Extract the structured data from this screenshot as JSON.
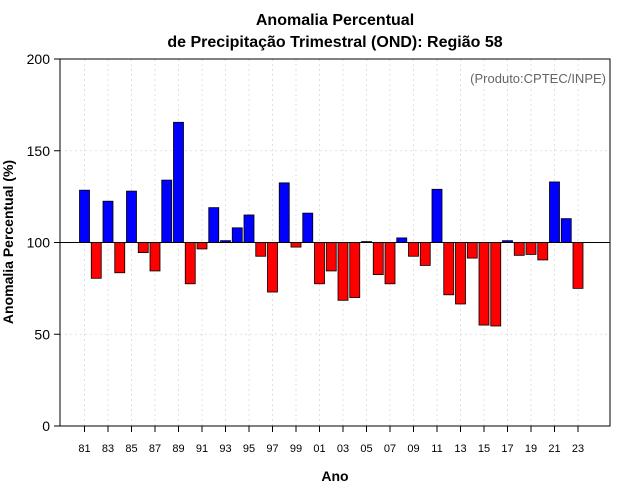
{
  "chart_data": {
    "type": "bar",
    "title_line1": "Anomalia Percentual",
    "title_line2": "de Precipitação Trimestral (OND): Região 58",
    "xlabel": "Ano",
    "ylabel": "Anomalia Percentual (%)",
    "credit": "(Produto:CPTEC/INPE)",
    "baseline": 100,
    "ylim": [
      0,
      200
    ],
    "yticks": [
      0,
      50,
      100,
      150,
      200
    ],
    "grid": true,
    "colors": {
      "above": "#0000ff",
      "below": "#ff0000"
    },
    "categories": [
      "81",
      "82",
      "83",
      "84",
      "85",
      "86",
      "87",
      "88",
      "89",
      "90",
      "91",
      "92",
      "93",
      "94",
      "95",
      "96",
      "97",
      "98",
      "99",
      "00",
      "01",
      "02",
      "03",
      "04",
      "05",
      "06",
      "07",
      "08",
      "09",
      "10",
      "11",
      "12",
      "13",
      "14",
      "15",
      "16",
      "17",
      "18",
      "19",
      "20",
      "21",
      "22",
      "23"
    ],
    "values": [
      128.5,
      80.5,
      122.5,
      83.5,
      128,
      94.5,
      84.5,
      134,
      165.5,
      77.5,
      96.5,
      119,
      101,
      108,
      115,
      92.5,
      73,
      132.5,
      97.5,
      116,
      77.5,
      84.5,
      68.5,
      70,
      100.5,
      82.5,
      77.5,
      102.5,
      92.5,
      87.5,
      129,
      71.5,
      66.5,
      91.5,
      55,
      54.5,
      101,
      93,
      93.5,
      90.5,
      133,
      113,
      75
    ],
    "tick_labels": [
      "81",
      "83",
      "85",
      "87",
      "89",
      "91",
      "93",
      "95",
      "97",
      "99",
      "01",
      "03",
      "05",
      "07",
      "09",
      "11",
      "13",
      "15",
      "17",
      "19",
      "21",
      "23"
    ]
  }
}
